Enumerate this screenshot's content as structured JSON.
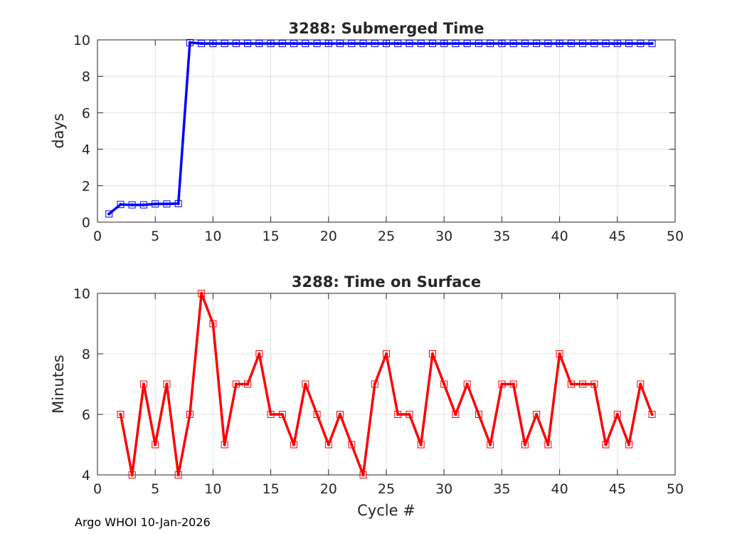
{
  "chart_data": [
    {
      "type": "line",
      "title": "3288: Submerged Time",
      "xlabel": "",
      "ylabel": "days",
      "xlim": [
        0,
        50
      ],
      "ylim": [
        0,
        10
      ],
      "xticks": [
        0,
        5,
        10,
        15,
        20,
        25,
        30,
        35,
        40,
        45,
        50
      ],
      "yticks": [
        0,
        2,
        4,
        6,
        8,
        10
      ],
      "grid": true,
      "color": "#0000ff",
      "marker": "square",
      "x": [
        1,
        2,
        3,
        4,
        5,
        6,
        7,
        8,
        9,
        10,
        11,
        12,
        13,
        14,
        15,
        16,
        17,
        18,
        19,
        20,
        21,
        22,
        23,
        24,
        25,
        26,
        27,
        28,
        29,
        30,
        31,
        32,
        33,
        34,
        35,
        36,
        37,
        38,
        39,
        40,
        41,
        42,
        43,
        44,
        45,
        46,
        47,
        48
      ],
      "y": [
        0.45,
        0.97,
        0.95,
        0.95,
        1.0,
        1.0,
        1.02,
        9.85,
        9.8,
        9.8,
        9.8,
        9.8,
        9.8,
        9.8,
        9.8,
        9.8,
        9.8,
        9.8,
        9.8,
        9.8,
        9.8,
        9.8,
        9.8,
        9.8,
        9.8,
        9.8,
        9.8,
        9.8,
        9.8,
        9.8,
        9.8,
        9.8,
        9.8,
        9.8,
        9.8,
        9.8,
        9.8,
        9.8,
        9.8,
        9.8,
        9.8,
        9.8,
        9.8,
        9.8,
        9.8,
        9.8,
        9.8,
        9.8
      ]
    },
    {
      "type": "line",
      "title": "3288: Time on Surface",
      "xlabel": "Cycle #",
      "ylabel": "Minutes",
      "xlim": [
        0,
        50
      ],
      "ylim": [
        4,
        10
      ],
      "xticks": [
        0,
        5,
        10,
        15,
        20,
        25,
        30,
        35,
        40,
        45,
        50
      ],
      "yticks": [
        4,
        6,
        8,
        10
      ],
      "grid": true,
      "color": "#ff0000",
      "marker": "square",
      "x": [
        2,
        3,
        4,
        5,
        6,
        7,
        8,
        9,
        10,
        11,
        12,
        13,
        14,
        15,
        16,
        17,
        18,
        19,
        20,
        21,
        22,
        23,
        24,
        25,
        26,
        27,
        28,
        29,
        30,
        31,
        32,
        33,
        34,
        35,
        36,
        37,
        38,
        39,
        40,
        41,
        42,
        43,
        44,
        45,
        46,
        47,
        48
      ],
      "y": [
        6,
        4,
        7,
        5,
        7,
        4,
        6,
        10,
        9,
        5,
        7,
        7,
        8,
        6,
        6,
        5,
        7,
        6,
        5,
        6,
        5,
        4,
        7,
        8,
        6,
        6,
        5,
        8,
        7,
        6,
        7,
        6,
        5,
        7,
        7,
        5,
        6,
        5,
        8,
        7,
        7,
        7,
        5,
        6,
        5,
        7,
        6
      ]
    }
  ],
  "footer": "Argo WHOI 10-Jan-2026"
}
